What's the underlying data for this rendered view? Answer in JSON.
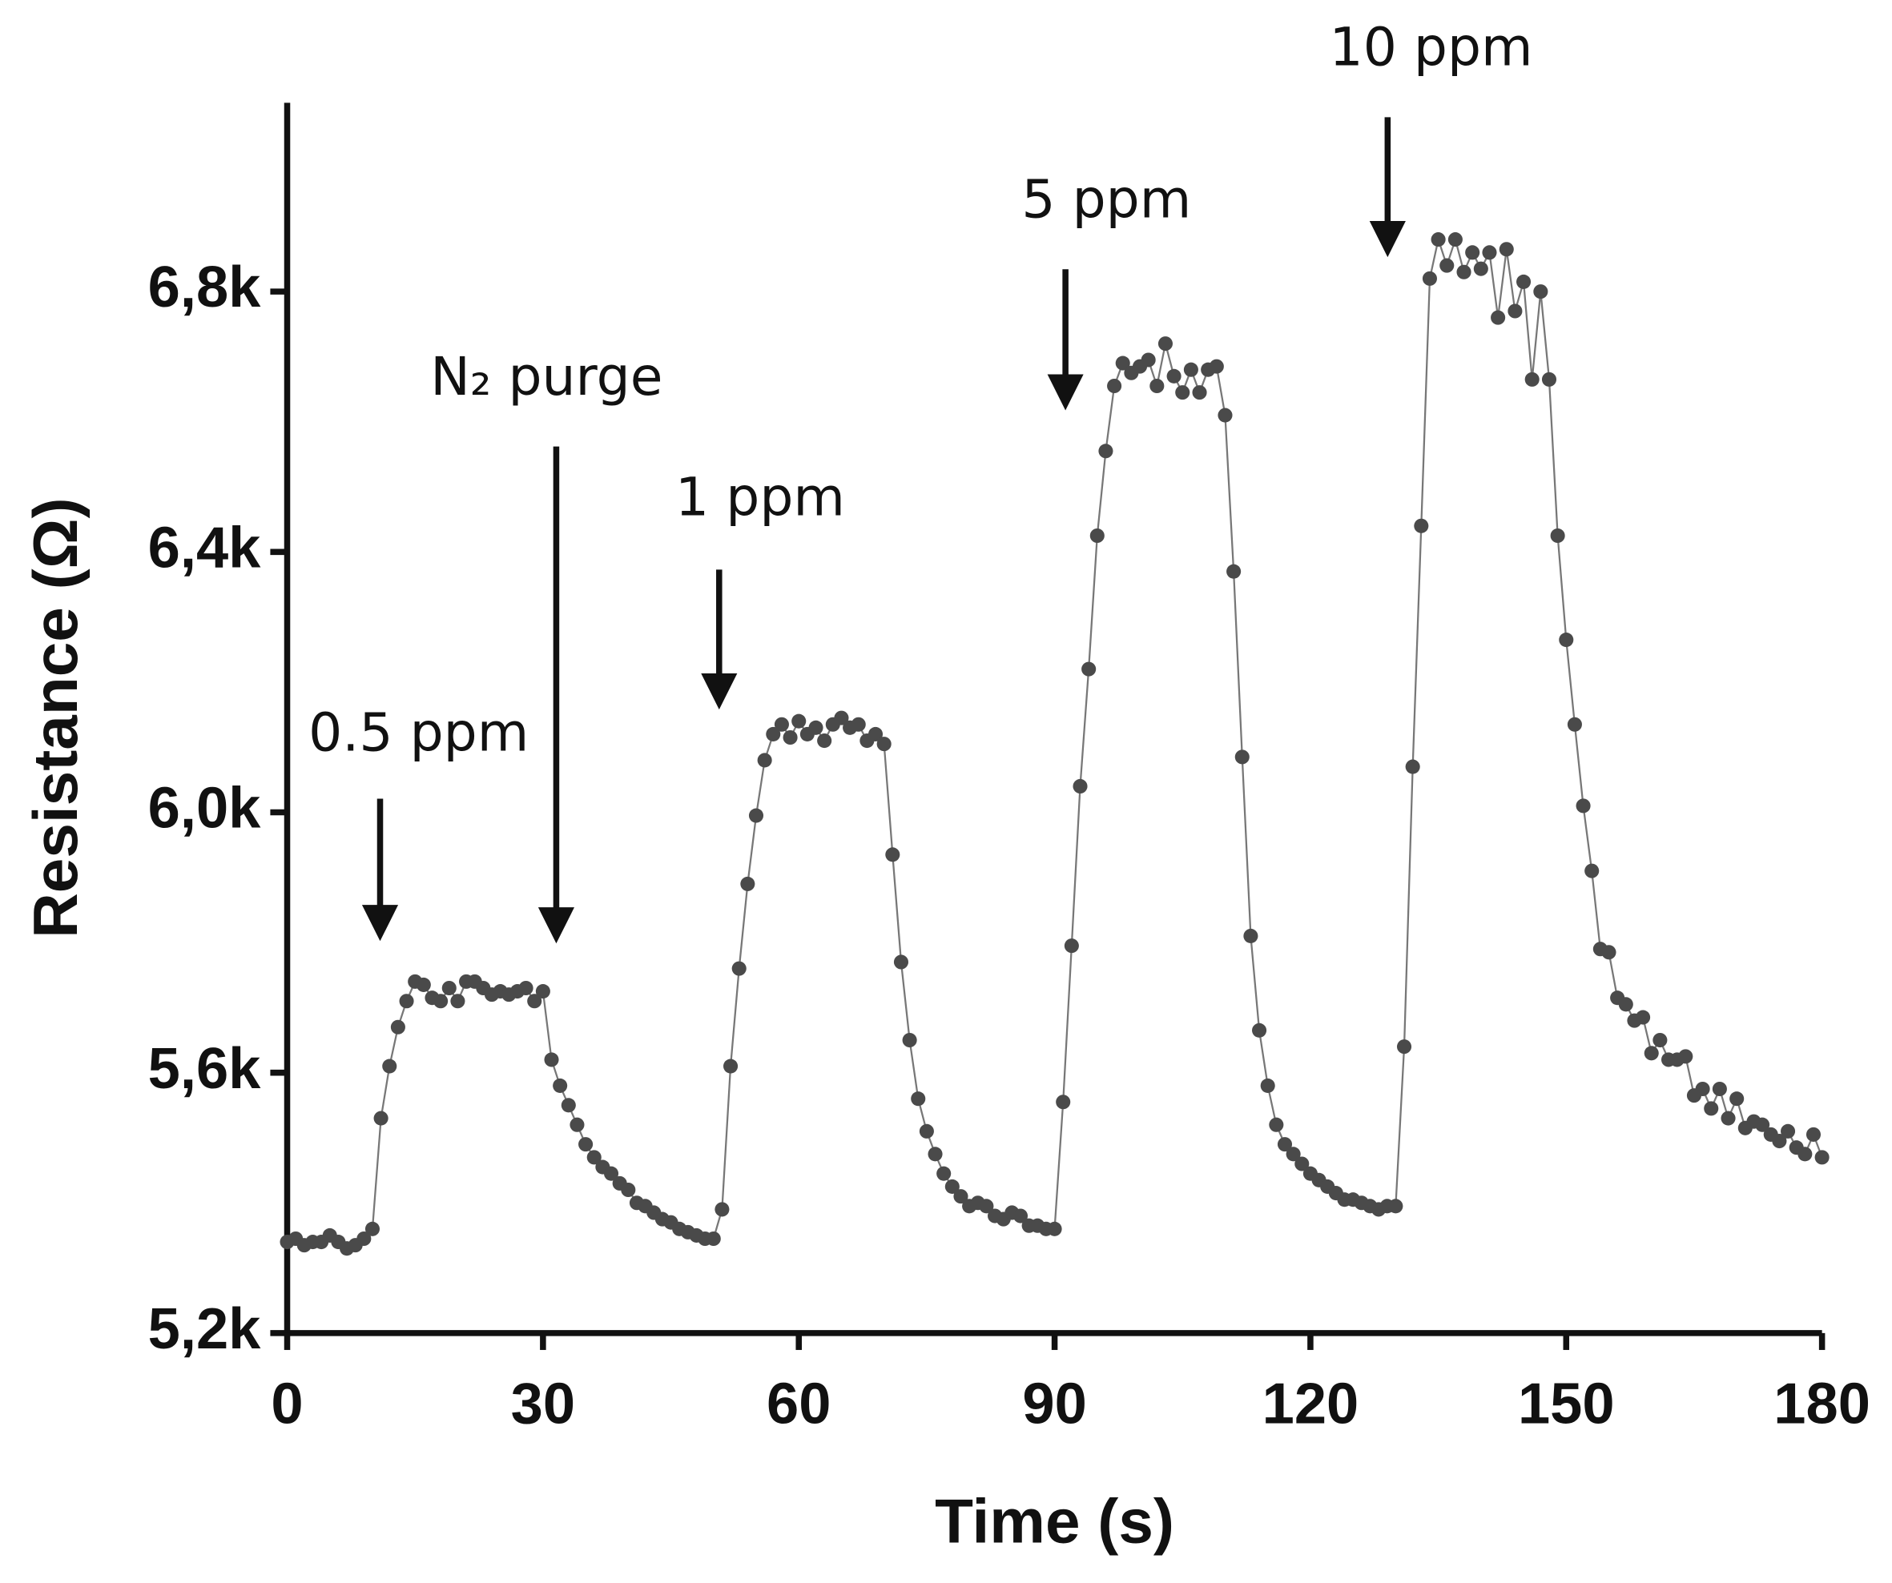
{
  "chart_data": {
    "type": "line",
    "x_label": "Time (s)",
    "y_label": "Resistance (Ω)",
    "annotations": [
      "0.5 ppm",
      "N₂ purge",
      "1 ppm",
      "5 ppm",
      "10 ppm"
    ],
    "color": "#4a4a4a",
    "xlim": [
      0,
      180
    ],
    "xticks": [
      0,
      30,
      60,
      90,
      120,
      150,
      180
    ],
    "ylim": [
      5200,
      7090
    ],
    "yticks": [
      {
        "value": 5200,
        "label": "5,2k"
      },
      {
        "value": 5600,
        "label": "5,6k"
      },
      {
        "value": 6000,
        "label": "6,0k"
      },
      {
        "value": 6400,
        "label": "6,4k"
      },
      {
        "value": 6800,
        "label": "6,8k"
      }
    ],
    "x": [
      0,
      1,
      2,
      3,
      4,
      5,
      6,
      7,
      8,
      9,
      10,
      11,
      12,
      13,
      14,
      15,
      16,
      17,
      18,
      19,
      20,
      21,
      22,
      23,
      24,
      25,
      26,
      27,
      28,
      29,
      30,
      31,
      32,
      33,
      34,
      35,
      36,
      37,
      38,
      39,
      40,
      41,
      42,
      43,
      44,
      45,
      46,
      47,
      48,
      49,
      50,
      51,
      52,
      53,
      54,
      55,
      56,
      57,
      58,
      59,
      60,
      61,
      62,
      63,
      64,
      65,
      66,
      67,
      68,
      69,
      70,
      71,
      72,
      73,
      74,
      75,
      76,
      77,
      78,
      79,
      80,
      81,
      82,
      83,
      84,
      85,
      86,
      87,
      88,
      89,
      90,
      91,
      92,
      93,
      94,
      95,
      96,
      97,
      98,
      99,
      100,
      101,
      102,
      103,
      104,
      105,
      106,
      107,
      108,
      109,
      110,
      111,
      112,
      113,
      114,
      115,
      116,
      117,
      118,
      119,
      120,
      121,
      122,
      123,
      124,
      125,
      126,
      127,
      128,
      129,
      130,
      131,
      132,
      133,
      134,
      135,
      136,
      137,
      138,
      139,
      140,
      141,
      142,
      143,
      144,
      145,
      146,
      147,
      148,
      149,
      150,
      151,
      152,
      153,
      154,
      155,
      156,
      157,
      158,
      159,
      160,
      161,
      162,
      163,
      164,
      165,
      166,
      167,
      168,
      169,
      170,
      171,
      172,
      173,
      174,
      175,
      176,
      177,
      178,
      179,
      180
    ],
    "values": [
      5340,
      5345,
      5335,
      5340,
      5340,
      5350,
      5340,
      5330,
      5335,
      5345,
      5360,
      5530,
      5610,
      5670,
      5710,
      5740,
      5735,
      5715,
      5710,
      5730,
      5710,
      5740,
      5740,
      5730,
      5720,
      5725,
      5720,
      5725,
      5730,
      5710,
      5725,
      5620,
      5580,
      5550,
      5520,
      5490,
      5470,
      5455,
      5445,
      5430,
      5420,
      5400,
      5395,
      5385,
      5375,
      5370,
      5360,
      5355,
      5350,
      5345,
      5345,
      5390,
      5610,
      5760,
      5890,
      5995,
      6080,
      6120,
      6135,
      6115,
      6140,
      6120,
      6130,
      6110,
      6135,
      6145,
      6130,
      6135,
      6110,
      6120,
      6105,
      5935,
      5770,
      5650,
      5560,
      5510,
      5475,
      5445,
      5425,
      5410,
      5395,
      5400,
      5395,
      5380,
      5375,
      5385,
      5380,
      5365,
      5365,
      5360,
      5360,
      5555,
      5795,
      6040,
      6220,
      6425,
      6555,
      6655,
      6690,
      6675,
      6685,
      6695,
      6655,
      6720,
      6670,
      6645,
      6680,
      6645,
      6680,
      6685,
      6610,
      6370,
      6085,
      5810,
      5665,
      5580,
      5520,
      5490,
      5475,
      5460,
      5445,
      5435,
      5425,
      5415,
      5405,
      5405,
      5400,
      5395,
      5390,
      5395,
      5395,
      5640,
      6070,
      6440,
      6820,
      6880,
      6840,
      6880,
      6830,
      6860,
      6835,
      6860,
      6760,
      6865,
      6770,
      6815,
      6665,
      6800,
      6665,
      6425,
      6265,
      6135,
      6010,
      5910,
      5790,
      5785,
      5715,
      5705,
      5680,
      5685,
      5630,
      5650,
      5620,
      5620,
      5625,
      5565,
      5575,
      5545,
      5575,
      5530,
      5560,
      5515,
      5525,
      5520,
      5505,
      5495,
      5510,
      5485,
      5475,
      5505,
      5470
    ]
  }
}
